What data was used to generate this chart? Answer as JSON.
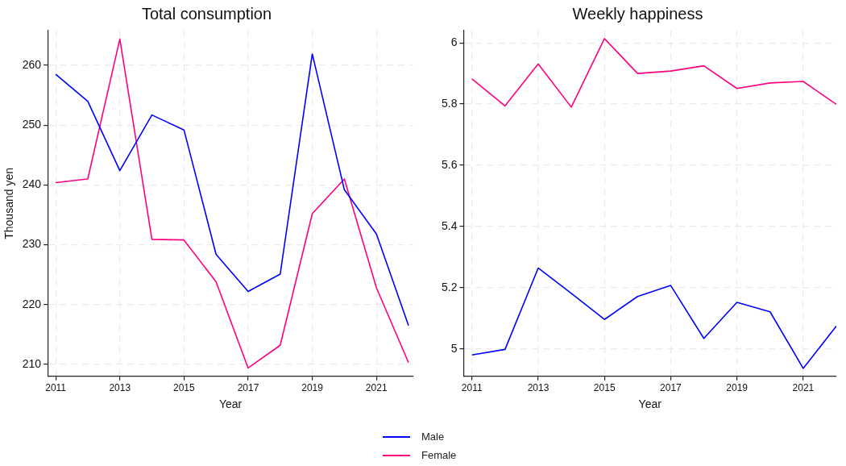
{
  "chart_data": [
    {
      "type": "line",
      "title": "Total consumption",
      "xlabel": "Year",
      "ylabel": "Thousand yen",
      "x": [
        2011,
        2012,
        2013,
        2014,
        2015,
        2016,
        2017,
        2018,
        2019,
        2020,
        2021,
        2022
      ],
      "series": [
        {
          "name": "Male",
          "color": "#0000ff",
          "values": [
            258.5,
            254.0,
            242.4,
            251.7,
            249.2,
            228.4,
            222.2,
            225.1,
            261.9,
            239.2,
            231.8,
            216.5
          ]
        },
        {
          "name": "Female",
          "color": "#ff0080",
          "values": [
            240.4,
            241.0,
            264.4,
            230.9,
            230.8,
            223.8,
            209.4,
            213.2,
            235.2,
            241.0,
            222.8,
            210.3
          ]
        }
      ],
      "xlim": [
        2010.75,
        2022.15
      ],
      "xticks": [
        2011,
        2013,
        2015,
        2017,
        2019,
        2021
      ],
      "ylim": [
        208,
        265.8
      ],
      "yticks": [
        210,
        220,
        230,
        240,
        250,
        260
      ],
      "grid": true,
      "legend": "bottom",
      "marker": "none",
      "line_style": "solid"
    },
    {
      "type": "line",
      "title": "Weekly happiness",
      "xlabel": "Year",
      "x": [
        2011,
        2012,
        2013,
        2014,
        2015,
        2016,
        2017,
        2018,
        2019,
        2020,
        2021,
        2022
      ],
      "series": [
        {
          "color": "#0000ff",
          "values": [
            4.98,
            4.998,
            5.264,
            5.181,
            5.096,
            5.171,
            5.207,
            5.034,
            5.152,
            5.121,
            4.936,
            5.074
          ]
        },
        {
          "color": "#ff0080",
          "values": [
            5.882,
            5.794,
            5.931,
            5.79,
            6.014,
            5.9,
            5.908,
            5.925,
            5.851,
            5.869,
            5.874,
            5.799
          ]
        }
      ],
      "xlim": [
        2010.75,
        2022
      ],
      "xticks": [
        2011,
        2013,
        2015,
        2017,
        2019,
        2021
      ],
      "ylim": [
        4.91,
        6.04
      ],
      "yticks": [
        5,
        5.2,
        5.4,
        5.6,
        5.8,
        6
      ],
      "grid": true,
      "marker": "none",
      "line_style": "solid"
    }
  ]
}
